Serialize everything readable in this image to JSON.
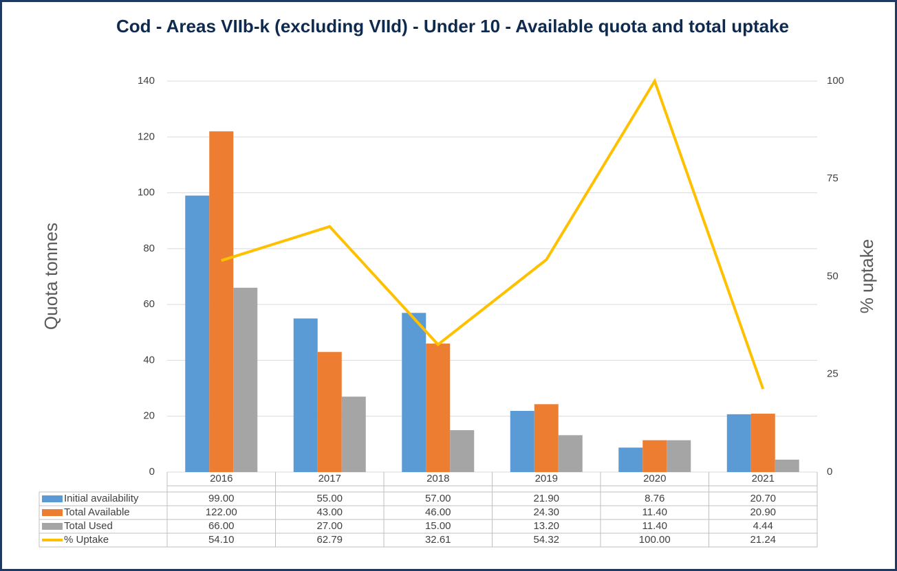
{
  "chart_data": {
    "type": "bar",
    "title": "Cod - Areas VIIb-k (excluding VIId) - Under 10 - Available quota and total uptake",
    "y_label": "Quota tonnes",
    "y2_label": "% uptake",
    "categories": [
      "2016",
      "2017",
      "2018",
      "2019",
      "2020",
      "2021"
    ],
    "series": [
      {
        "name": "Initial availability",
        "color": "#5b9bd5",
        "type": "bar",
        "values": [
          99,
          55,
          57,
          21.9,
          8.76,
          20.7
        ],
        "value_labels": [
          "99.00",
          "55.00",
          "57.00",
          "21.90",
          "8.76",
          "20.70"
        ]
      },
      {
        "name": "Total Available",
        "color": "#ed7d31",
        "type": "bar",
        "values": [
          122,
          43,
          46,
          24.3,
          11.4,
          20.9
        ],
        "value_labels": [
          "122.00",
          "43.00",
          "46.00",
          "24.30",
          "11.40",
          "20.90"
        ]
      },
      {
        "name": "Total Used",
        "color": "#a5a5a5",
        "type": "bar",
        "values": [
          66,
          27,
          15,
          13.2,
          11.4,
          4.44
        ],
        "value_labels": [
          "66.00",
          "27.00",
          "15.00",
          "13.20",
          "11.40",
          "4.44"
        ]
      },
      {
        "name": "% Uptake",
        "color": "#ffc000",
        "type": "line",
        "axis": "y2",
        "values": [
          54.1,
          62.79,
          32.61,
          54.32,
          100,
          21.24
        ],
        "value_labels": [
          "54.10",
          "62.79",
          "32.61",
          "54.32",
          "100.00",
          "21.24"
        ]
      }
    ],
    "ylim": [
      0,
      140
    ],
    "yticks": [
      0,
      20,
      40,
      60,
      80,
      100,
      120,
      140
    ],
    "y2lim": [
      0,
      100
    ],
    "y2ticks": [
      0,
      25,
      50,
      75,
      100
    ],
    "grid": true,
    "legend": "table"
  }
}
